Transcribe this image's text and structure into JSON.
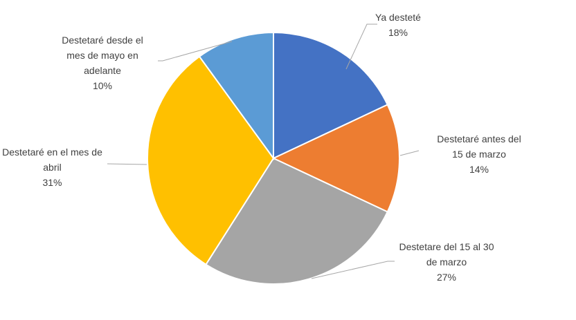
{
  "chart_data": {
    "type": "pie",
    "categories": [
      "Ya desteté",
      "Destetaré antes del 15 de marzo",
      "Destetare del 15 al 30 de marzo",
      "Destetaré en el mes de abril",
      "Destetaré desde el mes de mayo en adelante"
    ],
    "values": [
      18,
      14,
      27,
      31,
      10
    ],
    "value_labels": [
      "18%",
      "14%",
      "27%",
      "31%",
      "10%"
    ],
    "colors": [
      "#4472c4",
      "#ed7d31",
      "#a5a5a5",
      "#ffc000",
      "#5b9bd5"
    ]
  }
}
